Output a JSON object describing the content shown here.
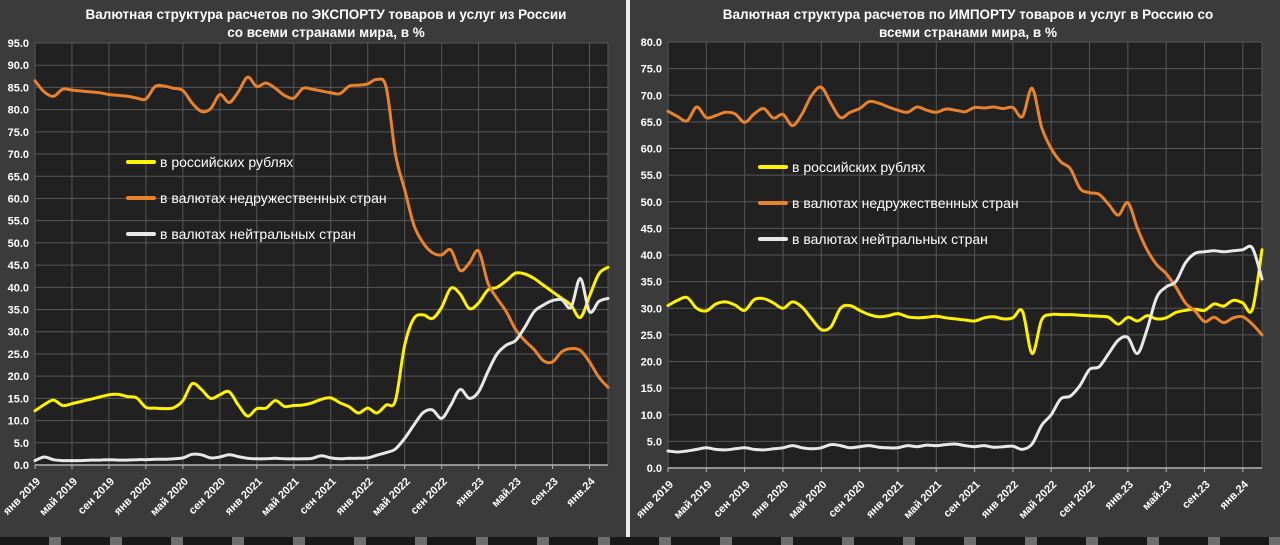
{
  "page": {
    "background": "#3b3b3b",
    "plot_background": "#212121",
    "gridline_color": "#575757",
    "axis_color": "#b5b5b5",
    "text_color": "#ffffff",
    "divider_color": "#ececec"
  },
  "chart_data": [
    {
      "type": "line",
      "title_line1": "Валютная структура расчетов по ЭКСПОРТУ товаров и услуг из России",
      "title_line2": "со всеми странами мира, в %",
      "y_axis": {
        "max": 95,
        "min": 0,
        "step": 5
      },
      "y_tick_labels": [
        "95.0",
        "90.0",
        "85.0",
        "80.0",
        "75.0",
        "70.0",
        "65.0",
        "60.0",
        "55.0",
        "50.0",
        "45.0",
        "40.0",
        "35.0",
        "30.0",
        "25.0",
        "20.0",
        "15.0",
        "10.0",
        "5.0",
        "0.0"
      ],
      "x_tick_labels": [
        "янв 2019",
        "май 2019",
        "сен 2019",
        "янв 2020",
        "май 2020",
        "сен 2020",
        "янв 2021",
        "май 2021",
        "сен 2021",
        "янв 2022",
        "май 2022",
        "сен 2022",
        "янв.23",
        "май.23",
        "сен.23",
        "янв.24"
      ],
      "grid": true,
      "legend_position": "inside-upper-left",
      "series": [
        {
          "name": "в российских рублях",
          "color": "#FFF100",
          "values": [
            12.2,
            13.6,
            14.6,
            13.4,
            13.8,
            14.3,
            14.8,
            15.3,
            15.8,
            15.9,
            15.4,
            15.1,
            13.0,
            12.8,
            12.7,
            12.9,
            14.5,
            18.3,
            17.0,
            15.0,
            15.8,
            16.5,
            13.5,
            11.0,
            12.7,
            12.8,
            14.5,
            13.2,
            13.4,
            13.5,
            14.0,
            14.8,
            15.1,
            14.0,
            13.1,
            11.7,
            12.8,
            11.7,
            13.5,
            14.5,
            27.0,
            33.0,
            33.8,
            33.0,
            35.5,
            39.8,
            38.5,
            35.2,
            36.5,
            39.4,
            40.0,
            41.5,
            43.2,
            43.0,
            42.0,
            40.5,
            39.0,
            37.5,
            36.0,
            33.2,
            38.0,
            43.0,
            44.5
          ]
        },
        {
          "name": "в валютах недружественных стран",
          "color": "#E8822D",
          "values": [
            86.5,
            84.0,
            83.0,
            84.6,
            84.4,
            84.2,
            84.0,
            83.8,
            83.4,
            83.2,
            83.0,
            82.6,
            82.4,
            85.2,
            85.3,
            84.8,
            84.3,
            81.5,
            79.6,
            80.2,
            83.4,
            81.6,
            84.0,
            87.3,
            85.2,
            86.0,
            84.8,
            83.2,
            82.6,
            84.8,
            84.6,
            84.2,
            83.8,
            83.6,
            85.3,
            85.5,
            85.8,
            86.8,
            85.0,
            70.0,
            62.0,
            54.0,
            50.0,
            47.8,
            47.3,
            48.4,
            43.8,
            45.5,
            48.2,
            41.0,
            37.5,
            34.5,
            30.5,
            28.0,
            26.0,
            23.5,
            23.2,
            25.5,
            26.2,
            25.8,
            23.2,
            19.8,
            17.5
          ]
        },
        {
          "name": "в валютах нейтральных стран",
          "color": "#E8E8E8",
          "values": [
            1.0,
            1.8,
            1.2,
            1.0,
            1.0,
            1.0,
            1.1,
            1.1,
            1.2,
            1.1,
            1.1,
            1.2,
            1.2,
            1.3,
            1.3,
            1.4,
            1.6,
            2.4,
            2.3,
            1.6,
            1.8,
            2.3,
            1.9,
            1.5,
            1.4,
            1.4,
            1.5,
            1.4,
            1.4,
            1.4,
            1.5,
            2.1,
            1.6,
            1.4,
            1.5,
            1.5,
            1.6,
            2.2,
            2.8,
            3.6,
            6.0,
            9.0,
            11.8,
            12.4,
            10.5,
            13.5,
            17.0,
            15.0,
            16.5,
            21.0,
            25.0,
            27.0,
            28.0,
            31.0,
            34.5,
            36.0,
            37.0,
            37.2,
            35.5,
            42.0,
            34.5,
            36.8,
            37.5
          ]
        }
      ]
    },
    {
      "type": "line",
      "title_line1": "Валютная структура расчетов по ИМПОРТУ товаров и услуг в Россию со",
      "title_line2": "всеми странами мира, в %",
      "y_axis": {
        "max": 80,
        "min": 0,
        "step": 5
      },
      "y_tick_labels": [
        "80.0",
        "75.0",
        "70.0",
        "65.0",
        "60.0",
        "55.0",
        "50.0",
        "45.0",
        "40.0",
        "35.0",
        "30.0",
        "25.0",
        "20.0",
        "15.0",
        "10.0",
        "5.0",
        "0.0"
      ],
      "x_tick_labels": [
        "янв 2019",
        "май 2019",
        "сен 2019",
        "янв 2020",
        "май 2020",
        "сен 2020",
        "янв 2021",
        "май 2021",
        "сен 2021",
        "янв 2022",
        "май 2022",
        "сен 2022",
        "янв.23",
        "май.23",
        "сен.23",
        "янв.24"
      ],
      "grid": true,
      "legend_position": "inside-upper-left",
      "series": [
        {
          "name": "в российских рублях",
          "color": "#FFF100",
          "values": [
            30.5,
            31.5,
            32.0,
            30.0,
            29.5,
            30.8,
            31.2,
            30.6,
            29.6,
            31.6,
            31.8,
            31.0,
            30.0,
            31.2,
            30.2,
            28.0,
            26.0,
            26.5,
            30.0,
            30.5,
            29.6,
            28.8,
            28.4,
            28.6,
            29.0,
            28.4,
            28.2,
            28.3,
            28.5,
            28.2,
            28.0,
            27.8,
            27.6,
            28.2,
            28.4,
            28.0,
            28.2,
            29.4,
            21.5,
            27.8,
            28.8,
            28.8,
            28.8,
            28.7,
            28.6,
            28.5,
            28.3,
            27.0,
            28.3,
            27.6,
            28.6,
            28.0,
            28.2,
            29.2,
            29.6,
            29.8,
            29.6,
            30.8,
            30.4,
            31.5,
            31.0,
            29.8,
            41.0
          ]
        },
        {
          "name": "в валютах недружественных стран",
          "color": "#E8822D",
          "values": [
            67.0,
            66.0,
            65.2,
            67.8,
            65.8,
            66.2,
            66.8,
            66.5,
            64.9,
            66.5,
            67.5,
            65.7,
            66.4,
            64.3,
            66.5,
            70.0,
            71.5,
            68.5,
            65.8,
            66.8,
            67.5,
            68.8,
            68.5,
            67.8,
            67.2,
            66.8,
            67.8,
            67.2,
            66.8,
            67.4,
            67.2,
            66.9,
            67.7,
            67.6,
            67.8,
            67.5,
            67.7,
            66.0,
            71.3,
            64.0,
            60.0,
            57.5,
            56.2,
            52.5,
            51.7,
            51.4,
            49.5,
            47.5,
            49.8,
            45.0,
            41.0,
            38.2,
            36.5,
            34.0,
            31.0,
            29.5,
            27.5,
            28.3,
            27.3,
            28.2,
            28.4,
            27.0,
            25.0
          ]
        },
        {
          "name": "в валютах нейтральных стран",
          "color": "#E8E8E8",
          "values": [
            3.2,
            3.0,
            3.2,
            3.5,
            3.8,
            3.5,
            3.4,
            3.6,
            3.8,
            3.5,
            3.4,
            3.6,
            3.8,
            4.2,
            3.8,
            3.6,
            3.8,
            4.4,
            4.2,
            3.8,
            4.0,
            4.2,
            3.9,
            3.8,
            3.8,
            4.2,
            4.0,
            4.3,
            4.2,
            4.4,
            4.5,
            4.2,
            4.0,
            4.2,
            3.9,
            4.0,
            4.1,
            3.5,
            4.5,
            8.0,
            10.0,
            13.0,
            13.5,
            15.5,
            18.5,
            19.0,
            21.5,
            24.0,
            24.5,
            21.5,
            26.0,
            32.0,
            34.0,
            35.0,
            38.5,
            40.3,
            40.6,
            40.8,
            40.6,
            40.8,
            41.0,
            41.3,
            35.5
          ]
        }
      ]
    }
  ]
}
